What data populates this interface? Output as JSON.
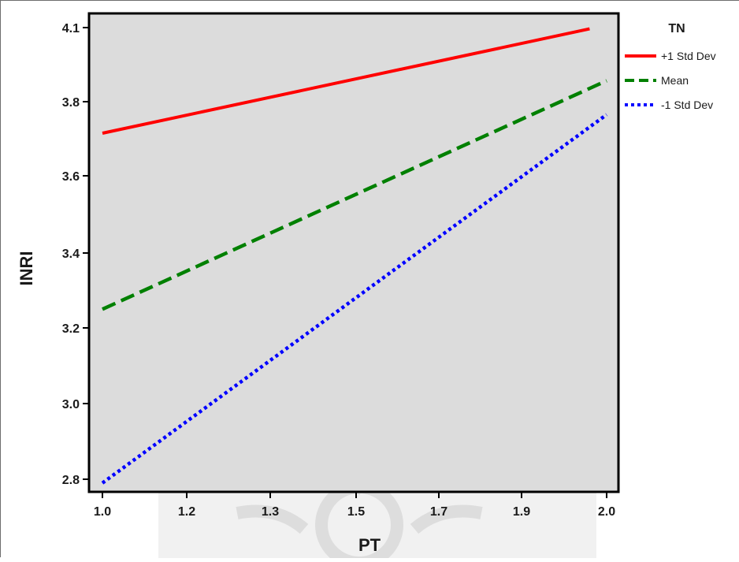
{
  "chart_data": {
    "type": "line",
    "xlabel": "PT",
    "ylabel": "INRI",
    "x_ticks": [
      "1.0",
      "1.2",
      "1.3",
      "1.5",
      "1.7",
      "1.9",
      "2.0"
    ],
    "y_ticks": [
      "4.1",
      "3.8",
      "3.6",
      "3.4",
      "3.2",
      "3.0",
      "2.8"
    ],
    "xlim": [
      1.0,
      2.0
    ],
    "ylim": [
      2.8,
      4.1
    ],
    "grid": false,
    "legend": {
      "title": "TN",
      "position": "top-right, outside plot"
    },
    "series": [
      {
        "name": "+1 Std Dev",
        "x": [
          1.0,
          1.98
        ],
        "y": [
          3.715,
          4.095
        ],
        "color": "#ff0000",
        "style": "solid"
      },
      {
        "name": "Mean",
        "x": [
          1.0,
          2.0
        ],
        "y": [
          3.25,
          3.885
        ],
        "color": "#008000",
        "style": "dashed"
      },
      {
        "name": "-1 Std Dev",
        "x": [
          1.0,
          2.0
        ],
        "y": [
          2.79,
          3.765
        ],
        "color": "#0000ff",
        "style": "dotted"
      }
    ],
    "plot_background": "#dcdcdc"
  }
}
